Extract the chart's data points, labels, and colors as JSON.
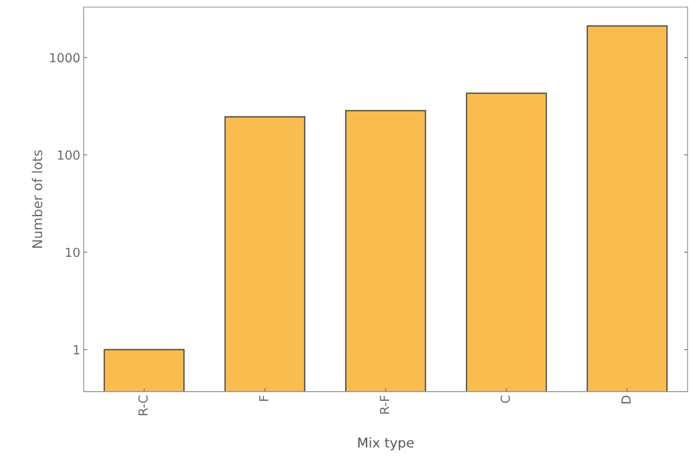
{
  "chart_data": {
    "type": "bar",
    "xlabel": "Mix type",
    "ylabel": "Number of lots",
    "categories": [
      "R-C",
      "F",
      "R-F",
      "C",
      "D"
    ],
    "values": [
      1,
      246,
      285,
      430,
      2110
    ],
    "color": "#f9bd4f",
    "log": "y",
    "ylim": [
      0.37,
      3300
    ],
    "yticks": [
      1,
      10,
      100,
      1000
    ],
    "grid": false,
    "legend": false
  }
}
